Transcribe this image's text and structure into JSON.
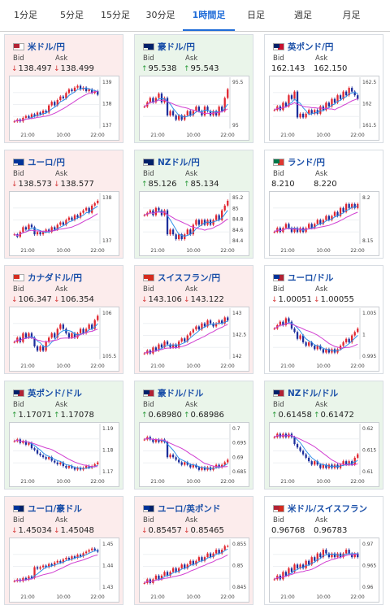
{
  "tabs": [
    {
      "label": "1分足",
      "active": false
    },
    {
      "label": "5分足",
      "active": false
    },
    {
      "label": "15分足",
      "active": false
    },
    {
      "label": "30分足",
      "active": false
    },
    {
      "label": "1時間足",
      "active": true
    },
    {
      "label": "日足",
      "active": false
    },
    {
      "label": "週足",
      "active": false
    },
    {
      "label": "月足",
      "active": false
    }
  ],
  "labels": {
    "bid": "Bid",
    "ask": "Ask"
  },
  "colors": {
    "up": "#2a9a3a",
    "down": "#d63a3a",
    "candle_up": "#e0242e",
    "candle_down": "#1c2e9c",
    "ma_short": "#2f8fe8",
    "ma_long": "#d13fd1",
    "link": "#1a4fa8",
    "active_tab": "#1f6cd8"
  },
  "icons": {
    "up": "arrow-up-icon",
    "down": "arrow-down-icon"
  },
  "cards": [
    {
      "pair": "米ドル/円",
      "flag": [
        "#b22234",
        "#ffffff"
      ],
      "bg": "down",
      "dir": "down",
      "bid": "138.497",
      "ask": "138.499",
      "chart": {
        "type": "candlestick",
        "x_ticks": [
          "21:00",
          "10:00",
          "22:00"
        ],
        "y_ticks": [
          "139",
          "138",
          "137"
        ],
        "ylim": [
          136.6,
          139.3
        ],
        "close": [
          137.0,
          137.1,
          137.0,
          137.2,
          137.3,
          137.2,
          137.4,
          137.3,
          137.5,
          137.4,
          137.6,
          137.5,
          137.9,
          138.1,
          137.9,
          138.2,
          138.4,
          138.3,
          138.6,
          138.8,
          138.7,
          138.9,
          139.0,
          138.8,
          138.9,
          138.7,
          138.8,
          138.6,
          138.7,
          138.5
        ]
      }
    },
    {
      "pair": "豪ドル/円",
      "flag": [
        "#012169",
        "#012169"
      ],
      "bg": "up",
      "dir": "up",
      "bid": "95.538",
      "ask": "95.543",
      "chart": {
        "type": "candlestick",
        "x_ticks": [
          "21:00",
          "10:00",
          "22:00"
        ],
        "y_ticks": [
          "95.5",
          "95"
        ],
        "ylim": [
          94.6,
          95.7
        ],
        "close": [
          95.1,
          95.2,
          95.3,
          95.2,
          95.3,
          95.4,
          95.2,
          95.3,
          94.9,
          95.0,
          94.9,
          94.8,
          94.9,
          94.8,
          94.9,
          95.0,
          94.9,
          95.0,
          95.1,
          95.0,
          94.9,
          95.1,
          95.0,
          94.9,
          95.0,
          94.9,
          95.1,
          95.0,
          95.3,
          95.5
        ]
      }
    },
    {
      "pair": "英ポンド/円",
      "flag": [
        "#012169",
        "#c8102e"
      ],
      "bg": "flat",
      "dir": "none",
      "bid": "162.143",
      "ask": "162.150",
      "chart": {
        "type": "candlestick",
        "x_ticks": [
          "21:00",
          "10:00",
          "22:00"
        ],
        "y_ticks": [
          "162.5",
          "162",
          "161.5"
        ],
        "ylim": [
          161.4,
          162.7
        ],
        "close": [
          161.9,
          162.0,
          161.9,
          162.1,
          162.0,
          162.3,
          162.2,
          162.4,
          161.7,
          161.8,
          161.7,
          161.8,
          161.9,
          161.8,
          161.9,
          161.8,
          162.0,
          161.9,
          162.1,
          162.0,
          162.2,
          162.1,
          162.3,
          162.2,
          162.4,
          162.3,
          162.5,
          162.4,
          162.3,
          162.2
        ]
      }
    },
    {
      "pair": "ユーロ/円",
      "flag": [
        "#003399",
        "#003399"
      ],
      "bg": "down",
      "dir": "down",
      "bid": "138.573",
      "ask": "138.577",
      "chart": {
        "type": "candlestick",
        "x_ticks": [
          "21:00",
          "10:00",
          "22:00"
        ],
        "y_ticks": [
          "138",
          "137"
        ],
        "ylim": [
          136.6,
          138.6
        ],
        "close": [
          137.0,
          136.9,
          137.1,
          137.3,
          137.2,
          137.4,
          137.3,
          137.0,
          137.1,
          137.0,
          137.1,
          137.2,
          137.1,
          137.3,
          137.2,
          137.4,
          137.5,
          137.4,
          137.6,
          137.7,
          137.6,
          137.8,
          137.7,
          137.9,
          138.0,
          138.1,
          137.9,
          138.2,
          138.3,
          138.4
        ]
      }
    },
    {
      "pair": "NZドル/円",
      "flag": [
        "#012169",
        "#012169"
      ],
      "bg": "up",
      "dir": "up",
      "bid": "85.126",
      "ask": "85.134",
      "chart": {
        "type": "candlestick",
        "x_ticks": [
          "21:00",
          "10:00",
          "22:00"
        ],
        "y_ticks": [
          "85.2",
          "85",
          "84.8",
          "84.6",
          "84.4"
        ],
        "ylim": [
          84.3,
          85.3
        ],
        "close": [
          84.9,
          84.95,
          85.0,
          84.9,
          85.05,
          85.0,
          84.9,
          85.0,
          84.5,
          84.6,
          84.5,
          84.4,
          84.5,
          84.4,
          84.5,
          84.6,
          84.5,
          84.7,
          84.8,
          84.7,
          84.8,
          84.7,
          84.8,
          84.7,
          84.8,
          84.9,
          84.8,
          85.0,
          85.1,
          85.2
        ]
      }
    },
    {
      "pair": "ランド/円",
      "flag": [
        "#007749",
        "#de3831"
      ],
      "bg": "flat",
      "dir": "none",
      "bid": "8.210",
      "ask": "8.220",
      "chart": {
        "type": "candlestick",
        "x_ticks": [
          "21:00",
          "10:00",
          "22:00"
        ],
        "y_ticks": [
          "8.2",
          "8.15"
        ],
        "ylim": [
          8.11,
          8.23
        ],
        "close": [
          8.14,
          8.15,
          8.14,
          8.15,
          8.16,
          8.15,
          8.14,
          8.15,
          8.14,
          8.15,
          8.14,
          8.15,
          8.16,
          8.15,
          8.16,
          8.17,
          8.16,
          8.17,
          8.18,
          8.17,
          8.18,
          8.19,
          8.18,
          8.2,
          8.19,
          8.21,
          8.2,
          8.21,
          8.2,
          8.21
        ]
      }
    },
    {
      "pair": "カナダドル/円",
      "flag": [
        "#d52b1e",
        "#ffffff"
      ],
      "bg": "down",
      "dir": "down",
      "bid": "106.347",
      "ask": "106.354",
      "chart": {
        "type": "candlestick",
        "x_ticks": [
          "21:00",
          "10:00",
          "22:00"
        ],
        "y_ticks": [
          "106",
          "105.5"
        ],
        "ylim": [
          105.3,
          106.4
        ],
        "close": [
          105.7,
          105.8,
          105.7,
          105.9,
          105.8,
          105.9,
          105.8,
          105.6,
          105.5,
          105.6,
          105.5,
          105.7,
          105.8,
          105.9,
          105.8,
          106.0,
          106.1,
          106.0,
          105.9,
          105.8,
          105.9,
          105.8,
          105.9,
          106.0,
          105.9,
          106.0,
          106.1,
          106.0,
          106.2,
          106.3
        ]
      }
    },
    {
      "pair": "スイスフラン/円",
      "flag": [
        "#d52b1e",
        "#d52b1e"
      ],
      "bg": "down",
      "dir": "down",
      "bid": "143.106",
      "ask": "143.122",
      "chart": {
        "type": "candlestick",
        "x_ticks": [
          "21:00",
          "10:00",
          "22:00"
        ],
        "y_ticks": [
          "143",
          "142.5",
          "142"
        ],
        "ylim": [
          141.7,
          143.3
        ],
        "close": [
          141.9,
          142.0,
          141.9,
          142.1,
          142.0,
          142.2,
          142.1,
          142.3,
          142.2,
          142.1,
          142.2,
          142.1,
          142.3,
          142.4,
          142.3,
          142.5,
          142.6,
          142.7,
          142.8,
          142.7,
          142.9,
          142.8,
          143.0,
          142.9,
          142.8,
          142.9,
          143.0,
          142.9,
          143.1,
          143.0
        ]
      }
    },
    {
      "pair": "ユーロ/ドル",
      "flag": [
        "#003399",
        "#b22234"
      ],
      "bg": "flat",
      "dir": "down",
      "bid": "1.00051",
      "ask": "1.00055",
      "chart": {
        "type": "candlestick",
        "x_ticks": [
          "21:00",
          "10:00",
          "22:00"
        ],
        "y_ticks": [
          "1.005",
          "1",
          "0.995"
        ],
        "ylim": [
          0.993,
          1.007
        ],
        "close": [
          1.002,
          1.003,
          1.004,
          1.003,
          1.005,
          1.004,
          1.002,
          1.001,
          0.999,
          1.0,
          0.998,
          0.997,
          0.998,
          0.997,
          0.996,
          0.997,
          0.996,
          0.995,
          0.996,
          0.995,
          0.996,
          0.995,
          0.996,
          0.997,
          0.998,
          0.999,
          0.998,
          1.0,
          1.001,
          1.002
        ]
      }
    },
    {
      "pair": "英ポンド/ドル",
      "flag": [
        "#012169",
        "#b22234"
      ],
      "bg": "up",
      "dir": "up",
      "bid": "1.17071",
      "ask": "1.17078",
      "chart": {
        "type": "candlestick",
        "x_ticks": [
          "21:00",
          "10:00",
          "22:00"
        ],
        "y_ticks": [
          "1.19",
          "1.18",
          "1.17"
        ],
        "ylim": [
          1.165,
          1.192
        ],
        "close": [
          1.184,
          1.185,
          1.183,
          1.184,
          1.182,
          1.183,
          1.18,
          1.179,
          1.177,
          1.176,
          1.175,
          1.174,
          1.175,
          1.173,
          1.172,
          1.171,
          1.172,
          1.17,
          1.169,
          1.17,
          1.169,
          1.168,
          1.169,
          1.168,
          1.169,
          1.17,
          1.169,
          1.17,
          1.171,
          1.172
        ]
      }
    },
    {
      "pair": "豪ドル/ドル",
      "flag": [
        "#012169",
        "#b22234"
      ],
      "bg": "up",
      "dir": "up",
      "bid": "0.68980",
      "ask": "0.68986",
      "chart": {
        "type": "candlestick",
        "x_ticks": [
          "21:00",
          "10:00",
          "22:00"
        ],
        "y_ticks": [
          "0.7",
          "0.695",
          "0.69",
          "0.685"
        ],
        "ylim": [
          0.683,
          0.702
        ],
        "close": [
          0.697,
          0.698,
          0.697,
          0.696,
          0.697,
          0.696,
          0.697,
          0.696,
          0.69,
          0.691,
          0.69,
          0.689,
          0.688,
          0.687,
          0.688,
          0.687,
          0.686,
          0.687,
          0.686,
          0.685,
          0.686,
          0.685,
          0.686,
          0.685,
          0.686,
          0.687,
          0.686,
          0.687,
          0.688,
          0.689
        ]
      }
    },
    {
      "pair": "NZドル/ドル",
      "flag": [
        "#012169",
        "#b22234"
      ],
      "bg": "up",
      "dir": "up",
      "bid": "0.61458",
      "ask": "0.61472",
      "chart": {
        "type": "candlestick",
        "x_ticks": [
          "21:00",
          "10:00",
          "22:00"
        ],
        "y_ticks": [
          "0.62",
          "0.615",
          "0.61"
        ],
        "ylim": [
          0.609,
          0.623
        ],
        "close": [
          0.62,
          0.621,
          0.62,
          0.621,
          0.62,
          0.621,
          0.62,
          0.618,
          0.617,
          0.616,
          0.615,
          0.614,
          0.613,
          0.612,
          0.613,
          0.612,
          0.611,
          0.612,
          0.611,
          0.612,
          0.611,
          0.612,
          0.611,
          0.612,
          0.613,
          0.612,
          0.613,
          0.612,
          0.614,
          0.615
        ]
      }
    },
    {
      "pair": "ユーロ/豪ドル",
      "flag": [
        "#003399",
        "#012169"
      ],
      "bg": "down",
      "dir": "down",
      "bid": "1.45034",
      "ask": "1.45048",
      "chart": {
        "type": "candlestick",
        "x_ticks": [
          "21:00",
          "10:00",
          "22:00"
        ],
        "y_ticks": [
          "1.45",
          "1.44",
          "1.43"
        ],
        "ylim": [
          1.425,
          1.456
        ],
        "close": [
          1.431,
          1.432,
          1.431,
          1.433,
          1.432,
          1.434,
          1.433,
          1.44,
          1.439,
          1.44,
          1.441,
          1.44,
          1.442,
          1.441,
          1.443,
          1.444,
          1.443,
          1.445,
          1.446,
          1.445,
          1.447,
          1.446,
          1.448,
          1.447,
          1.449,
          1.45,
          1.451,
          1.452,
          1.451,
          1.45
        ]
      }
    },
    {
      "pair": "ユーロ/英ポンド",
      "flag": [
        "#003399",
        "#012169"
      ],
      "bg": "down",
      "dir": "down",
      "bid": "0.85457",
      "ask": "0.85465",
      "chart": {
        "type": "candlestick",
        "x_ticks": [
          "21:00",
          "10:00",
          "22:00"
        ],
        "y_ticks": [
          "0.855",
          "0.85",
          "0.845"
        ],
        "ylim": [
          0.843,
          0.856
        ],
        "close": [
          0.845,
          0.846,
          0.845,
          0.846,
          0.847,
          0.846,
          0.847,
          0.848,
          0.847,
          0.848,
          0.849,
          0.848,
          0.849,
          0.85,
          0.849,
          0.85,
          0.851,
          0.85,
          0.851,
          0.852,
          0.851,
          0.852,
          0.853,
          0.852,
          0.853,
          0.854,
          0.853,
          0.854,
          0.855,
          0.855
        ]
      }
    },
    {
      "pair": "米ドル/スイスフラン",
      "flag": [
        "#b22234",
        "#d52b1e"
      ],
      "bg": "flat",
      "dir": "none",
      "bid": "0.96768",
      "ask": "0.96783",
      "chart": {
        "type": "candlestick",
        "x_ticks": [
          "21:00",
          "10:00",
          "22:00"
        ],
        "y_ticks": [
          "0.97",
          "0.965",
          "0.96"
        ],
        "ylim": [
          0.959,
          0.972
        ],
        "close": [
          0.962,
          0.963,
          0.962,
          0.964,
          0.963,
          0.965,
          0.964,
          0.966,
          0.965,
          0.966,
          0.965,
          0.967,
          0.966,
          0.968,
          0.967,
          0.969,
          0.968,
          0.97,
          0.969,
          0.968,
          0.969,
          0.968,
          0.969,
          0.968,
          0.969,
          0.97,
          0.969,
          0.968,
          0.969,
          0.968
        ]
      }
    }
  ]
}
